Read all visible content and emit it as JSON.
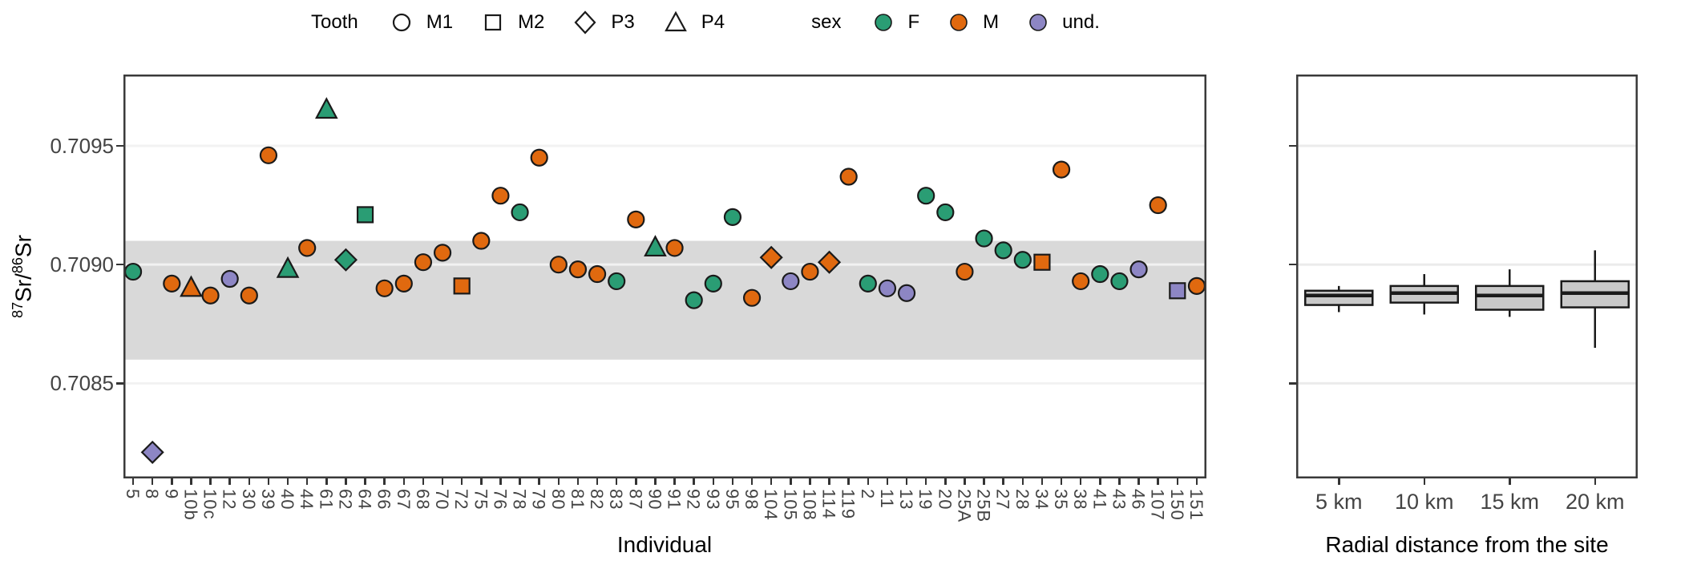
{
  "figure": {
    "legend": {
      "tooth": {
        "title": "Tooth",
        "items": [
          {
            "key": "M1",
            "shape": "circle",
            "label": "M1"
          },
          {
            "key": "M2",
            "shape": "square",
            "label": "M2"
          },
          {
            "key": "P3",
            "shape": "diamond",
            "label": "P3"
          },
          {
            "key": "P4",
            "shape": "triangle",
            "label": "P4"
          }
        ]
      },
      "sex": {
        "title": "sex",
        "items": [
          {
            "key": "F",
            "label": "F"
          },
          {
            "key": "M",
            "label": "M"
          },
          {
            "key": "und",
            "label": "und."
          }
        ]
      }
    },
    "axes": {
      "y_title": {
        "sup1": "87",
        "mid": "Sr/",
        "sup2": "86",
        "end": "Sr"
      },
      "y_tick_labels": [
        "0.7095",
        "0.7090",
        "0.7085"
      ]
    }
  },
  "colors": {
    "F": "#2A9D74",
    "M": "#E0690F",
    "und": "#8D86C4",
    "marker_stroke": "#1a1a1a",
    "band": "#D9D9D9",
    "grid": "#EBEBEB",
    "panel_border": "#3a3a3a",
    "box_fill": "#C9C9C9",
    "box_stroke": "#1a1a1a",
    "tick_text": "#444444"
  },
  "chart_data": [
    {
      "type": "scatter",
      "title": "",
      "xlabel": "Individual",
      "ylabel": "87Sr/86Sr",
      "ylim": [
        0.7081,
        0.7098
      ],
      "y_ticks": [
        0.7095,
        0.709,
        0.7085
      ],
      "grid": true,
      "legend_position": "top",
      "reference_band": [
        0.7086,
        0.7091
      ],
      "points": [
        {
          "id": "5",
          "tooth": "M1",
          "sex": "F",
          "value": 0.70897
        },
        {
          "id": "8",
          "tooth": "P3",
          "sex": "und",
          "value": 0.70821
        },
        {
          "id": "9",
          "tooth": "M1",
          "sex": "M",
          "value": 0.70892
        },
        {
          "id": "10b",
          "tooth": "P4",
          "sex": "M",
          "value": 0.7089
        },
        {
          "id": "10c",
          "tooth": "M1",
          "sex": "M",
          "value": 0.70887
        },
        {
          "id": "12",
          "tooth": "M1",
          "sex": "und",
          "value": 0.70894
        },
        {
          "id": "30",
          "tooth": "M1",
          "sex": "M",
          "value": 0.70887
        },
        {
          "id": "39",
          "tooth": "M1",
          "sex": "M",
          "value": 0.70946
        },
        {
          "id": "40",
          "tooth": "P4",
          "sex": "F",
          "value": 0.70898
        },
        {
          "id": "44",
          "tooth": "M1",
          "sex": "M",
          "value": 0.70907
        },
        {
          "id": "61",
          "tooth": "P4",
          "sex": "F",
          "value": 0.70965
        },
        {
          "id": "62",
          "tooth": "P3",
          "sex": "F",
          "value": 0.70902
        },
        {
          "id": "64",
          "tooth": "M2",
          "sex": "F",
          "value": 0.70921
        },
        {
          "id": "66",
          "tooth": "M1",
          "sex": "M",
          "value": 0.7089
        },
        {
          "id": "67",
          "tooth": "M1",
          "sex": "M",
          "value": 0.70892
        },
        {
          "id": "68",
          "tooth": "M1",
          "sex": "M",
          "value": 0.70901
        },
        {
          "id": "70",
          "tooth": "M1",
          "sex": "M",
          "value": 0.70905
        },
        {
          "id": "72",
          "tooth": "M2",
          "sex": "M",
          "value": 0.70891
        },
        {
          "id": "75",
          "tooth": "M1",
          "sex": "M",
          "value": 0.7091
        },
        {
          "id": "76",
          "tooth": "M1",
          "sex": "M",
          "value": 0.70929
        },
        {
          "id": "78",
          "tooth": "M1",
          "sex": "F",
          "value": 0.70922
        },
        {
          "id": "79",
          "tooth": "M1",
          "sex": "M",
          "value": 0.70945
        },
        {
          "id": "80",
          "tooth": "M1",
          "sex": "M",
          "value": 0.709
        },
        {
          "id": "81",
          "tooth": "M1",
          "sex": "M",
          "value": 0.70898
        },
        {
          "id": "82",
          "tooth": "M1",
          "sex": "M",
          "value": 0.70896
        },
        {
          "id": "83",
          "tooth": "M1",
          "sex": "F",
          "value": 0.70893
        },
        {
          "id": "87",
          "tooth": "M1",
          "sex": "M",
          "value": 0.70919
        },
        {
          "id": "90",
          "tooth": "P4",
          "sex": "F",
          "value": 0.70907
        },
        {
          "id": "91",
          "tooth": "M1",
          "sex": "M",
          "value": 0.70907
        },
        {
          "id": "92",
          "tooth": "M1",
          "sex": "F",
          "value": 0.70885
        },
        {
          "id": "93",
          "tooth": "M1",
          "sex": "F",
          "value": 0.70892
        },
        {
          "id": "95",
          "tooth": "M1",
          "sex": "F",
          "value": 0.7092
        },
        {
          "id": "98",
          "tooth": "M1",
          "sex": "M",
          "value": 0.70886
        },
        {
          "id": "104",
          "tooth": "P3",
          "sex": "M",
          "value": 0.70903
        },
        {
          "id": "105",
          "tooth": "M1",
          "sex": "und",
          "value": 0.70893
        },
        {
          "id": "108",
          "tooth": "M1",
          "sex": "M",
          "value": 0.70897
        },
        {
          "id": "114",
          "tooth": "P3",
          "sex": "M",
          "value": 0.70901
        },
        {
          "id": "119",
          "tooth": "M1",
          "sex": "M",
          "value": 0.70937
        },
        {
          "id": "2",
          "tooth": "M1",
          "sex": "F",
          "value": 0.70892
        },
        {
          "id": "11",
          "tooth": "M1",
          "sex": "und",
          "value": 0.7089
        },
        {
          "id": "13",
          "tooth": "M1",
          "sex": "und",
          "value": 0.70888
        },
        {
          "id": "19",
          "tooth": "M1",
          "sex": "F",
          "value": 0.70929
        },
        {
          "id": "20",
          "tooth": "M1",
          "sex": "F",
          "value": 0.70922
        },
        {
          "id": "25A",
          "tooth": "M1",
          "sex": "M",
          "value": 0.70897
        },
        {
          "id": "25B",
          "tooth": "M1",
          "sex": "F",
          "value": 0.70911
        },
        {
          "id": "27",
          "tooth": "M1",
          "sex": "F",
          "value": 0.70906
        },
        {
          "id": "28",
          "tooth": "M1",
          "sex": "F",
          "value": 0.70902
        },
        {
          "id": "34",
          "tooth": "M2",
          "sex": "M",
          "value": 0.70901
        },
        {
          "id": "35",
          "tooth": "M1",
          "sex": "M",
          "value": 0.7094
        },
        {
          "id": "38",
          "tooth": "M1",
          "sex": "M",
          "value": 0.70893
        },
        {
          "id": "41",
          "tooth": "M1",
          "sex": "F",
          "value": 0.70896
        },
        {
          "id": "43",
          "tooth": "M1",
          "sex": "F",
          "value": 0.70893
        },
        {
          "id": "46",
          "tooth": "M1",
          "sex": "und",
          "value": 0.70898
        },
        {
          "id": "107",
          "tooth": "M1",
          "sex": "M",
          "value": 0.70925
        },
        {
          "id": "150",
          "tooth": "M2",
          "sex": "und",
          "value": 0.70889
        },
        {
          "id": "151",
          "tooth": "M1",
          "sex": "M",
          "value": 0.70891
        }
      ]
    },
    {
      "type": "boxplot",
      "title": "",
      "xlabel": "Radial distance from the site",
      "ylim": [
        0.7081,
        0.7098
      ],
      "y_ticks": [
        0.7095,
        0.709,
        0.7085
      ],
      "grid": true,
      "categories": [
        "5 km",
        "10 km",
        "15 km",
        "20 km"
      ],
      "boxes": [
        {
          "category": "5 km",
          "whisker_low": 0.7088,
          "q1": 0.70883,
          "median": 0.70887,
          "q3": 0.70889,
          "whisker_high": 0.70891
        },
        {
          "category": "10 km",
          "whisker_low": 0.70879,
          "q1": 0.70884,
          "median": 0.70888,
          "q3": 0.70891,
          "whisker_high": 0.70896
        },
        {
          "category": "15 km",
          "whisker_low": 0.70878,
          "q1": 0.70881,
          "median": 0.70887,
          "q3": 0.70891,
          "whisker_high": 0.70898
        },
        {
          "category": "20 km",
          "whisker_low": 0.70865,
          "q1": 0.70882,
          "median": 0.70888,
          "q3": 0.70893,
          "whisker_high": 0.70906
        }
      ]
    }
  ]
}
